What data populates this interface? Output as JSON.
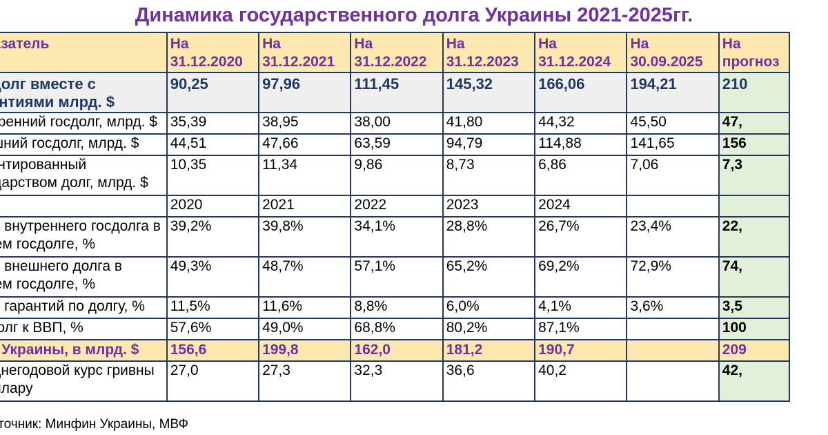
{
  "title": "Динамика государственного долга Украины 2021-2025гг.",
  "header": {
    "label": "Показатель",
    "dates": [
      "На 31.12.2020",
      "На 31.12.2021",
      "На 31.12.2022",
      "На 31.12.2023",
      "На 31.12.2024",
      "На 30.09.2025"
    ],
    "last": "На прогноз"
  },
  "rows": [
    {
      "type": "total",
      "label": "Госдолг вместе с гарантиями млрд. $",
      "values": [
        "90,25",
        "97,96",
        "111,45",
        "145,32",
        "166,06",
        "194,21"
      ],
      "last": "210"
    },
    {
      "type": "plain",
      "label": "Внутренний госдолг, млрд. $",
      "values": [
        "35,39",
        "38,95",
        "38,00",
        "41,80",
        "44,32",
        "45,50"
      ],
      "last": "47,"
    },
    {
      "type": "plain",
      "label": "Внешний госдолг, млрд. $",
      "values": [
        "44,51",
        "47,66",
        "63,59",
        "94,79",
        "114,88",
        "141,65"
      ],
      "last": "156"
    },
    {
      "type": "plain",
      "label": "Гарантированный государством долг, млрд. $",
      "values": [
        "10,35",
        "11,34",
        "9,86",
        "8,73",
        "6,86",
        "7,06"
      ],
      "last": "7,3"
    },
    {
      "type": "years",
      "label": "",
      "values": [
        "2020",
        "2021",
        "2022",
        "2023",
        "2024",
        ""
      ],
      "last": ""
    },
    {
      "type": "plain",
      "label": "Доля внутреннего госдолга в общем госдолге, %",
      "values": [
        "39,2%",
        "39,8%",
        "34,1%",
        "28,8%",
        "26,7%",
        "23,4%"
      ],
      "last": "22,"
    },
    {
      "type": "plain",
      "label": "Доля внешнего долга в общем госдолге, %",
      "values": [
        "49,3%",
        "48,7%",
        "57,1%",
        "65,2%",
        "69,2%",
        "72,9%"
      ],
      "last": "74,"
    },
    {
      "type": "plain",
      "label": "Доля гарантий по долгу, %",
      "values": [
        "11,5%",
        "11,6%",
        "8,8%",
        "6,0%",
        "4,1%",
        "3,6%"
      ],
      "last": "3,5"
    },
    {
      "type": "plain",
      "label": "Госдолг к ВВП, %",
      "values": [
        "57,6%",
        "49,0%",
        "68,8%",
        "80,2%",
        "87,1%",
        ""
      ],
      "last": "100"
    },
    {
      "type": "gdp",
      "label": "ВВП Украины, в млрд. $",
      "values": [
        "156,6",
        "199,8",
        "162,0",
        "181,2",
        "190,7",
        ""
      ],
      "last": "209"
    },
    {
      "type": "plain",
      "label": "Среднегодовой курс гривны к доллару",
      "values": [
        "27,0",
        "27,3",
        "32,3",
        "36,6",
        "40,2",
        ""
      ],
      "last": "42,"
    }
  ],
  "source": "Источник: Минфин Украины, МВФ"
}
